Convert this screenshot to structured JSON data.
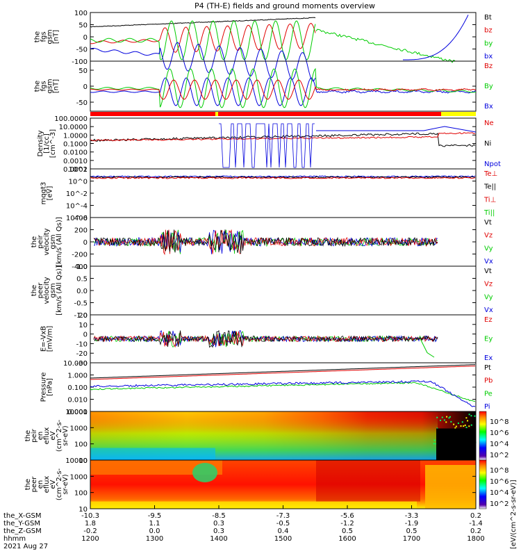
{
  "title": "P4 (TH-E) fields and ground moments overview",
  "colors": {
    "black": "#000000",
    "red": "#e00000",
    "green": "#00cc00",
    "blue": "#0000dd"
  },
  "footer": {
    "rows": [
      {
        "label": "the_X-GSM",
        "values": [
          "-10.3",
          "-9.5",
          "-8.5",
          "-7.3",
          "-5.6",
          "-3.3",
          "0.2"
        ]
      },
      {
        "label": "the_Y-GSM",
        "values": [
          "1.8",
          "1.1",
          "0.3",
          "-0.5",
          "-1.2",
          "-1.9",
          "-1.4"
        ]
      },
      {
        "label": "the_Z-GSM",
        "values": [
          "-0.2",
          "0.0",
          "0.3",
          "0.4",
          "0.5",
          "0.5",
          "0.2"
        ]
      },
      {
        "label": "hhmm",
        "values": [
          "1200",
          "1300",
          "1400",
          "1500",
          "1600",
          "1700",
          "1800"
        ]
      }
    ],
    "date": "2021 Aug 27"
  },
  "colorbar_label": "[eV/(cm^2-s-sr-eV)]",
  "colorbar_ticks": [
    "10^8",
    "10^6",
    "10^4",
    "10^2"
  ],
  "chart_data": [
    {
      "type": "line",
      "ylabel": [
        "the",
        "fgs",
        "gsm",
        "[nT]"
      ],
      "ylim": [
        -100,
        100
      ],
      "yticks": [
        "100",
        "50",
        "0",
        "-50",
        "-100"
      ],
      "legend": [
        {
          "name": "Bt",
          "color": "black"
        },
        {
          "name": "bz",
          "color": "red"
        },
        {
          "name": "by",
          "color": "green"
        },
        {
          "name": "bx",
          "color": "blue"
        }
      ]
    },
    {
      "type": "line",
      "ylabel": [
        "the",
        "fgs",
        "gsm",
        "[nT]"
      ],
      "ylim": [
        -100,
        100
      ],
      "yticks": [
        "50",
        "0",
        "-50"
      ],
      "legend": [
        {
          "name": "Bz",
          "color": "red"
        },
        {
          "name": "By",
          "color": "green"
        },
        {
          "name": "Bx",
          "color": "blue"
        }
      ]
    },
    {
      "type": "line",
      "ylabel": [
        "Density",
        "[1/cc]",
        "[cm^-3]"
      ],
      "yscale": "log",
      "ylim": [
        0.0001,
        100
      ],
      "yticks": [
        "100.0000",
        "10.0000",
        "1.0000",
        "0.1000",
        "0.0100",
        "0.0010",
        "0.0001"
      ],
      "legend": [
        {
          "name": "Ne",
          "color": "red"
        },
        {
          "name": "Ni",
          "color": "black"
        },
        {
          "name": "Npot",
          "color": "blue"
        }
      ]
    },
    {
      "type": "line",
      "ylabel": [
        "mqgt3",
        "[eV]"
      ],
      "yscale": "log",
      "yticks": [
        "10^2",
        "10^0",
        "10^-2",
        "10^-4",
        "10^-6"
      ],
      "legend": [
        {
          "name": "Te⊥",
          "color": "red"
        },
        {
          "name": "Te||",
          "color": "black"
        },
        {
          "name": "Ti⊥",
          "color": "red"
        },
        {
          "name": "Ti||",
          "color": "green"
        }
      ]
    },
    {
      "type": "line",
      "ylabel": [
        "the",
        "peir",
        "velocity",
        "gsm",
        "[km/s (All Qs)]"
      ],
      "ylim": [
        -400,
        400
      ],
      "yticks": [
        "400",
        "200",
        "0",
        "-200",
        "-400"
      ],
      "legend": [
        {
          "name": "Vt",
          "color": "black"
        },
        {
          "name": "Vz",
          "color": "red"
        },
        {
          "name": "Vy",
          "color": "green"
        },
        {
          "name": "Vx",
          "color": "blue"
        }
      ]
    },
    {
      "type": "line",
      "ylabel": [
        "the",
        "peer",
        "velocity",
        "gsm",
        "[km/s (All Qs)]"
      ],
      "ylim": [
        -1,
        1
      ],
      "yticks": [
        "1.0",
        "0.5",
        "0.0",
        "-0.5",
        "-1.0"
      ],
      "legend": [
        {
          "name": "Vt",
          "color": "black"
        },
        {
          "name": "Vz",
          "color": "red"
        },
        {
          "name": "Vy",
          "color": "green"
        },
        {
          "name": "Vx",
          "color": "blue"
        }
      ]
    },
    {
      "type": "line",
      "ylabel": [
        "E=-VxB",
        "[mV/m]"
      ],
      "ylim": [
        -30,
        20
      ],
      "yticks": [
        "20",
        "10",
        "0",
        "-10",
        "-20",
        "-30"
      ],
      "legend": [
        {
          "name": "Ez",
          "color": "red"
        },
        {
          "name": "Ey",
          "color": "green"
        },
        {
          "name": "Ex",
          "color": "blue"
        }
      ]
    },
    {
      "type": "line",
      "ylabel": [
        "Pressure",
        "[nPa]"
      ],
      "yscale": "log",
      "ylim": [
        0.001,
        10
      ],
      "yticks": [
        "10.000",
        "1.000",
        "0.100",
        "0.010",
        "0.001"
      ],
      "legend": [
        {
          "name": "Pt",
          "color": "black"
        },
        {
          "name": "Pb",
          "color": "red"
        },
        {
          "name": "Pe",
          "color": "green"
        },
        {
          "name": "Pi",
          "color": "blue"
        }
      ]
    },
    {
      "type": "heatmap",
      "ylabel": [
        "the",
        "peir",
        "en",
        "eflux",
        "eV",
        "(cm^2-s-",
        "sr-eV)"
      ],
      "yscale": "log",
      "ylim": [
        10,
        10000
      ],
      "yticks": [
        "10000",
        "1000",
        "100",
        "10"
      ]
    },
    {
      "type": "heatmap",
      "ylabel": [
        "the",
        "peer",
        "en",
        "eflux",
        "eV",
        "(cm^2-s-",
        "sr-eV)"
      ],
      "yscale": "log",
      "ylim": [
        10,
        10000
      ],
      "yticks": [
        "10000",
        "1000",
        "100",
        "10"
      ]
    }
  ]
}
